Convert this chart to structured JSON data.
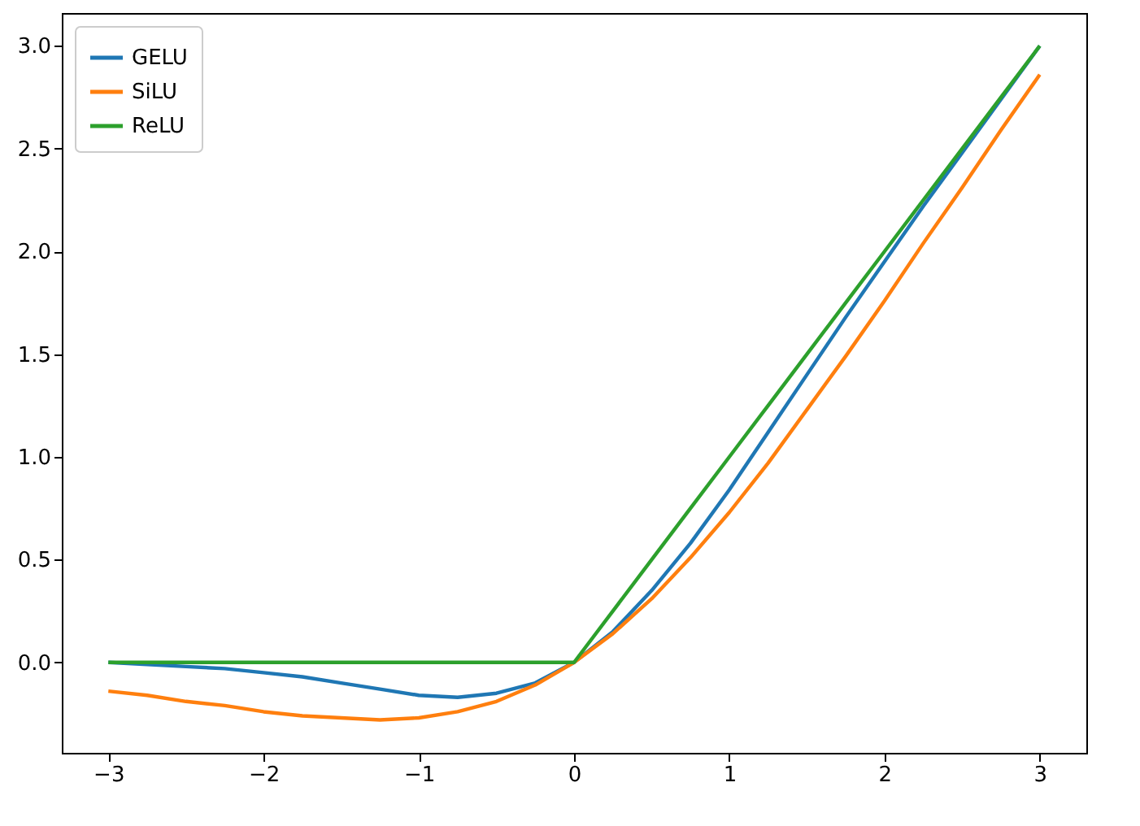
{
  "chart_data": {
    "type": "line",
    "x": [
      -3,
      -2.75,
      -2.5,
      -2.25,
      -2,
      -1.75,
      -1.5,
      -1.25,
      -1,
      -0.75,
      -0.5,
      -0.25,
      0,
      0.25,
      0.5,
      0.75,
      1,
      1.25,
      1.5,
      1.75,
      2,
      2.25,
      2.5,
      2.75,
      3
    ],
    "series": [
      {
        "name": "GELU",
        "color": "#1f77b4",
        "values": [
          0.0,
          -0.01,
          -0.02,
          -0.03,
          -0.05,
          -0.07,
          -0.1,
          -0.13,
          -0.16,
          -0.17,
          -0.15,
          -0.1,
          0,
          0.15,
          0.35,
          0.58,
          0.84,
          1.12,
          1.4,
          1.68,
          1.95,
          2.22,
          2.48,
          2.74,
          3.0
        ]
      },
      {
        "name": "SiLU",
        "color": "#ff7f0e",
        "values": [
          -0.14,
          -0.16,
          -0.19,
          -0.21,
          -0.24,
          -0.26,
          -0.27,
          -0.28,
          -0.27,
          -0.24,
          -0.19,
          -0.11,
          0,
          0.14,
          0.31,
          0.51,
          0.73,
          0.97,
          1.23,
          1.49,
          1.76,
          2.04,
          2.31,
          2.59,
          2.86
        ]
      },
      {
        "name": "ReLU",
        "color": "#2ca02c",
        "values": [
          0,
          0,
          0,
          0,
          0,
          0,
          0,
          0,
          0,
          0,
          0,
          0,
          0,
          0.25,
          0.5,
          0.75,
          1,
          1.25,
          1.5,
          1.75,
          2,
          2.25,
          2.5,
          2.75,
          3
        ]
      }
    ],
    "xlim": [
      -3.3,
      3.3
    ],
    "ylim": [
      -0.44,
      3.16
    ],
    "xticks": [
      {
        "value": -3,
        "label": "−3"
      },
      {
        "value": -2,
        "label": "−2"
      },
      {
        "value": -1,
        "label": "−1"
      },
      0,
      1,
      2,
      3
    ],
    "yticks": [
      {
        "value": 0,
        "label": "0.0"
      },
      {
        "value": 0.5,
        "label": "0.5"
      },
      {
        "value": 1,
        "label": "1.0"
      },
      {
        "value": 1.5,
        "label": "1.5"
      },
      {
        "value": 2,
        "label": "2.0"
      },
      {
        "value": 2.5,
        "label": "2.5"
      },
      {
        "value": 3,
        "label": "3.0"
      }
    ],
    "grid": false,
    "legend": "top left",
    "line_style": "solid",
    "marker": "none"
  }
}
